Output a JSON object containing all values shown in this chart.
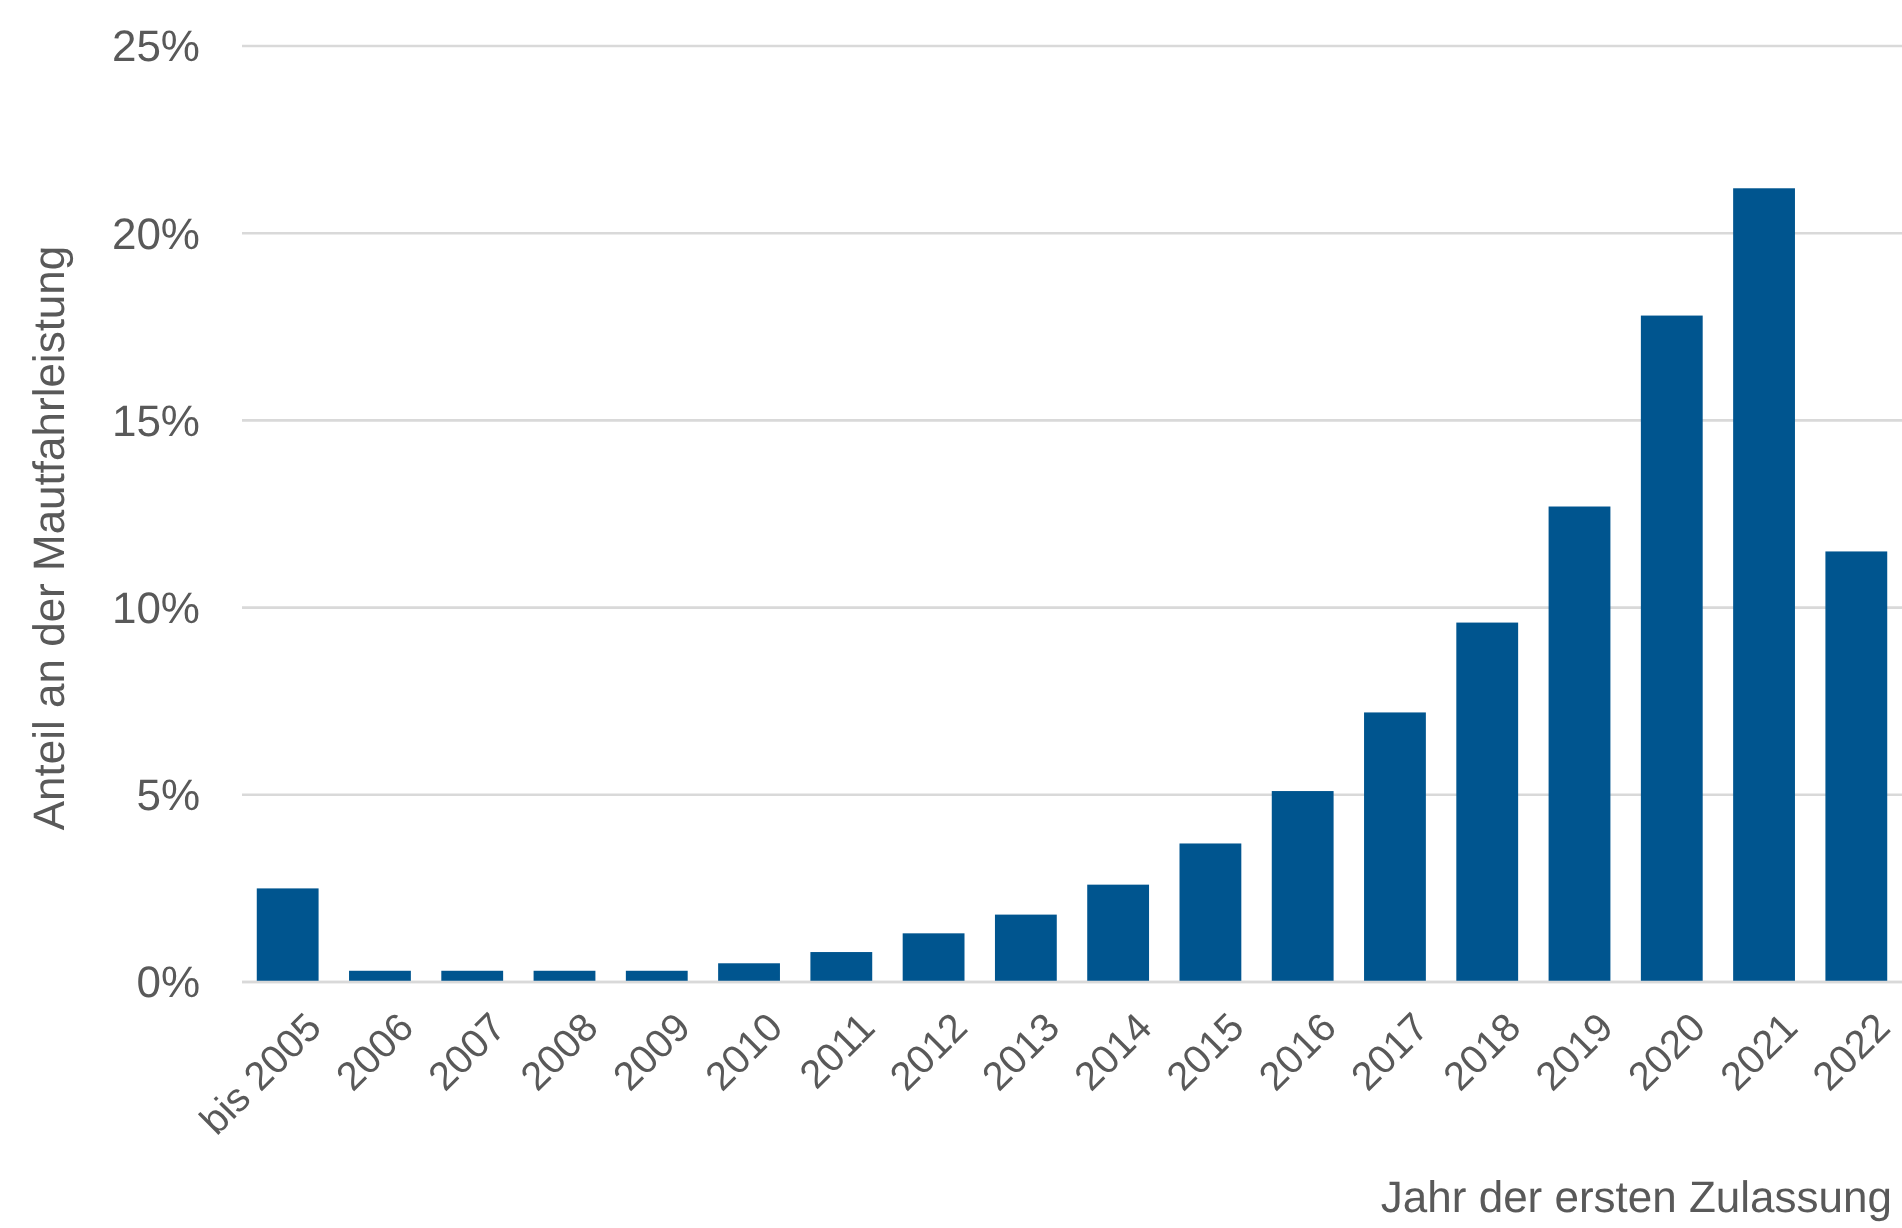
{
  "chart_data": {
    "type": "bar",
    "xlabel": "Jahr der ersten Zulassung",
    "ylabel": "Anteil an der Mautfahrleistung",
    "categories": [
      "bis 2005",
      "2006",
      "2007",
      "2008",
      "2009",
      "2010",
      "2011",
      "2012",
      "2013",
      "2014",
      "2015",
      "2016",
      "2017",
      "2018",
      "2019",
      "2020",
      "2021",
      "2022"
    ],
    "values": [
      2.5,
      0.3,
      0.3,
      0.3,
      0.3,
      0.5,
      0.8,
      1.3,
      1.8,
      2.6,
      3.7,
      5.1,
      7.2,
      9.6,
      12.7,
      17.8,
      21.2,
      11.5
    ],
    "color": "#00558f",
    "ylim": [
      0,
      25
    ],
    "yticks": [
      {
        "value": 0,
        "label": "0%"
      },
      {
        "value": 5,
        "label": "5%"
      },
      {
        "value": 10,
        "label": "10%"
      },
      {
        "value": 15,
        "label": "15%"
      },
      {
        "value": 20,
        "label": "20%"
      },
      {
        "value": 25,
        "label": "25%"
      }
    ],
    "grid": "y"
  }
}
